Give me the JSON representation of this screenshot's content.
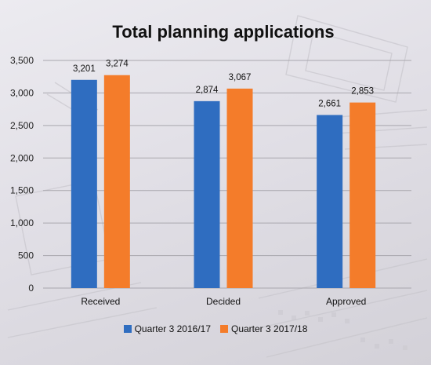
{
  "chart_data": {
    "type": "bar",
    "title": "Total planning applications",
    "categories": [
      "Received",
      "Decided",
      "Approved"
    ],
    "series": [
      {
        "name": "Quarter 3 2016/17",
        "values": [
          3201,
          2874,
          2661
        ],
        "labels": [
          "3,201",
          "2,874",
          "2,661"
        ],
        "color": "#2f6dc0"
      },
      {
        "name": "Quarter 3 2017/18",
        "values": [
          3274,
          3067,
          2853
        ],
        "labels": [
          "3,274",
          "3,067",
          "2,853"
        ],
        "color": "#f47c2a"
      }
    ],
    "ylim": [
      0,
      3500
    ],
    "yticks": [
      {
        "value": 0,
        "label": "0"
      },
      {
        "value": 500,
        "label": "500"
      },
      {
        "value": 1000,
        "label": "1,000"
      },
      {
        "value": 1500,
        "label": "1,500"
      },
      {
        "value": 2000,
        "label": "2,000"
      },
      {
        "value": 2500,
        "label": "2,500"
      },
      {
        "value": 3000,
        "label": "3,000"
      },
      {
        "value": 3500,
        "label": "3,500"
      }
    ],
    "grid": true,
    "legend_position": "bottom"
  }
}
